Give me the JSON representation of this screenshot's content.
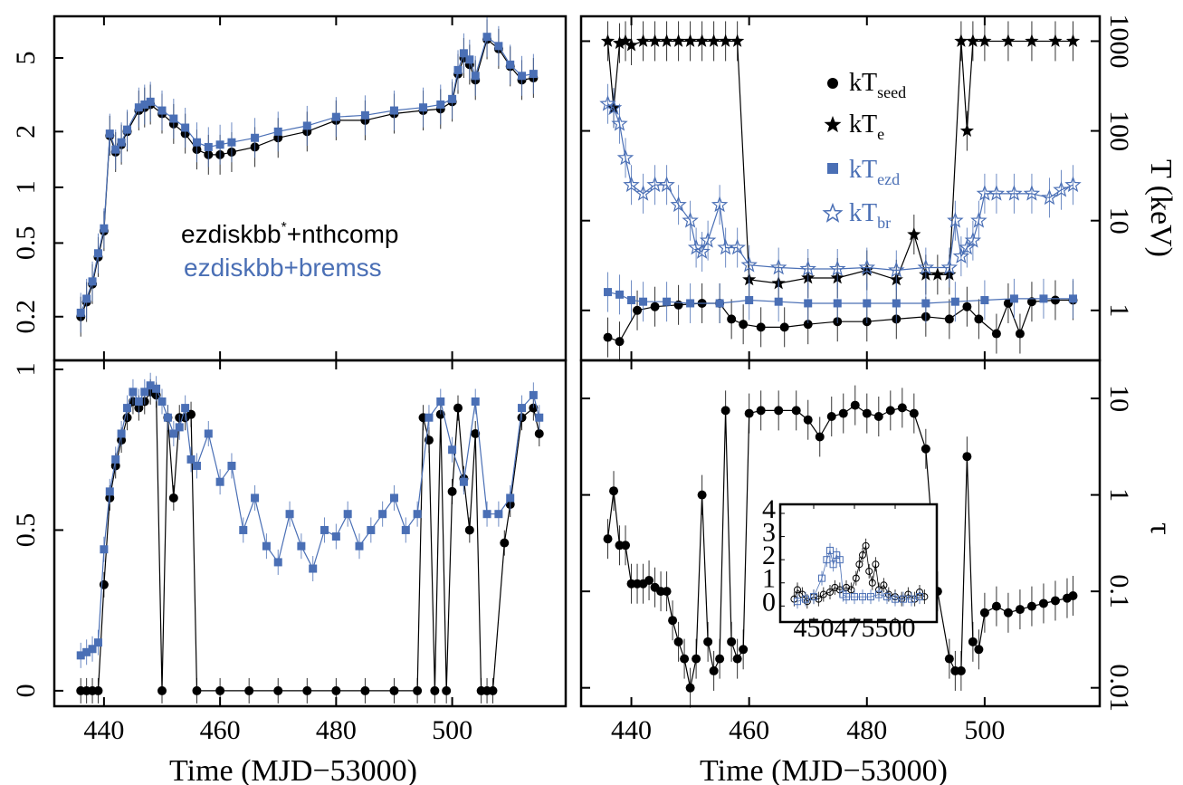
{
  "colors": {
    "black": "#000000",
    "blue": "#4a6fb5"
  },
  "labels": {
    "xlabel": "Time (MJD−53000)",
    "right_top_ylabel": "T (keV)",
    "right_bottom_ylabel": "τ",
    "model1": "ezdiskbb",
    "model1_sup": "*",
    "model1_rest": "+nthcomp",
    "model2": "ezdiskbb+bremss",
    "legend": [
      {
        "base": "kT",
        "sub": "seed",
        "color": "#000000",
        "marker": "filled-circle"
      },
      {
        "base": "kT",
        "sub": "e",
        "color": "#000000",
        "marker": "filled-star"
      },
      {
        "base": "kT",
        "sub": "ezd",
        "color": "#4a6fb5",
        "marker": "filled-square"
      },
      {
        "base": "kT",
        "sub": "br",
        "color": "#4a6fb5",
        "marker": "open-star"
      }
    ]
  },
  "chart_data": [
    {
      "panel": "top-left",
      "type": "scatter",
      "yscale": "log",
      "xlim": [
        433,
        518
      ],
      "ylim": [
        0.13,
        7.5
      ],
      "xticks": [
        "440",
        "460",
        "480",
        "500"
      ],
      "yticks": [
        "0.2",
        "0.5",
        "1",
        "2",
        "5"
      ],
      "series": [
        {
          "name": "ezdiskbb*+nthcomp",
          "color": "#000000",
          "marker": "circle",
          "x": [
            436,
            437,
            438,
            439,
            440,
            441,
            442,
            443,
            444,
            446,
            447,
            448,
            450,
            452,
            454,
            456,
            458,
            460,
            462,
            466,
            470,
            475,
            480,
            485,
            490,
            495,
            498,
            500,
            501,
            502,
            503,
            504,
            506,
            508,
            510,
            512,
            514
          ],
          "y": [
            0.2,
            0.24,
            0.3,
            0.42,
            0.58,
            1.9,
            1.55,
            1.7,
            2.0,
            2.6,
            2.7,
            2.8,
            2.5,
            2.2,
            1.95,
            1.6,
            1.5,
            1.5,
            1.55,
            1.65,
            1.85,
            2.0,
            2.3,
            2.3,
            2.5,
            2.6,
            2.65,
            2.9,
            4.1,
            5.0,
            4.6,
            3.8,
            6.3,
            5.6,
            4.5,
            3.8,
            3.9
          ]
        },
        {
          "name": "ezdiskbb+bremss",
          "color": "#4a6fb5",
          "marker": "square",
          "x": [
            436,
            437,
            438,
            439,
            440,
            441,
            442,
            443,
            444,
            446,
            447,
            448,
            450,
            452,
            454,
            456,
            458,
            460,
            462,
            466,
            470,
            475,
            480,
            485,
            490,
            495,
            498,
            500,
            501,
            502,
            503,
            504,
            506,
            508,
            510,
            512,
            514
          ],
          "y": [
            0.21,
            0.25,
            0.31,
            0.44,
            0.6,
            1.95,
            1.6,
            1.75,
            2.05,
            2.7,
            2.8,
            2.9,
            2.6,
            2.35,
            2.1,
            1.75,
            1.65,
            1.7,
            1.75,
            1.85,
            2.0,
            2.15,
            2.4,
            2.45,
            2.6,
            2.7,
            2.8,
            3.0,
            4.3,
            5.3,
            4.9,
            4.0,
            6.5,
            5.8,
            4.6,
            4.0,
            4.1
          ]
        }
      ]
    },
    {
      "panel": "top-right",
      "type": "scatter",
      "yscale": "log",
      "ylabel": "T (keV)",
      "xlim": [
        433,
        518
      ],
      "ylim": [
        0.35,
        1500
      ],
      "xticks": [
        "440",
        "460",
        "480",
        "500"
      ],
      "yticks": [
        "1",
        "10",
        "100",
        "1000"
      ],
      "series": [
        {
          "name": "kT_seed",
          "color": "#000000",
          "marker": "circle",
          "x": [
            436,
            438,
            441,
            444,
            448,
            452,
            455,
            457,
            459,
            462,
            466,
            470,
            475,
            480,
            485,
            490,
            494,
            497,
            499,
            502,
            504,
            506,
            508,
            512,
            515
          ],
          "y": [
            0.5,
            0.45,
            1.0,
            1.1,
            1.15,
            1.2,
            1.2,
            0.8,
            0.7,
            0.65,
            0.65,
            0.7,
            0.75,
            0.75,
            0.8,
            0.85,
            0.8,
            1.1,
            0.8,
            0.55,
            1.2,
            0.55,
            1.25,
            1.3,
            1.3
          ]
        },
        {
          "name": "kT_e",
          "color": "#000000",
          "marker": "star",
          "x": [
            436,
            437,
            438,
            439,
            440,
            442,
            444,
            446,
            448,
            450,
            452,
            454,
            456,
            458,
            460,
            465,
            470,
            475,
            480,
            485,
            488,
            490,
            492,
            494,
            496,
            497,
            498,
            500,
            504,
            508,
            512,
            515
          ],
          "y": [
            1000,
            180,
            950,
            1000,
            900,
            1000,
            1000,
            1000,
            1000,
            1000,
            1000,
            1000,
            1000,
            1000,
            2.2,
            2.0,
            2.3,
            2.3,
            2.8,
            2.2,
            7.0,
            2.5,
            2.5,
            2.5,
            1000,
            100,
            1000,
            1000,
            1000,
            1000,
            1000,
            1000
          ]
        },
        {
          "name": "kT_ezd",
          "color": "#4a6fb5",
          "marker": "square",
          "x": [
            436,
            438,
            440,
            442,
            446,
            450,
            455,
            460,
            465,
            470,
            475,
            480,
            485,
            490,
            495,
            500,
            505,
            510,
            515
          ],
          "y": [
            1.6,
            1.5,
            1.3,
            1.25,
            1.25,
            1.2,
            1.2,
            1.3,
            1.25,
            1.2,
            1.2,
            1.2,
            1.2,
            1.2,
            1.25,
            1.3,
            1.35,
            1.35,
            1.35
          ]
        },
        {
          "name": "kT_br",
          "color": "#4a6fb5",
          "marker": "open-star",
          "x": [
            436,
            437,
            438,
            439,
            440,
            442,
            444,
            446,
            448,
            450,
            451,
            452,
            453,
            455,
            456,
            458,
            460,
            465,
            470,
            475,
            480,
            485,
            490,
            494,
            495,
            496,
            497,
            498,
            499,
            500,
            502,
            505,
            508,
            511,
            513,
            515
          ],
          "y": [
            200,
            180,
            120,
            50,
            25,
            20,
            25,
            25,
            15,
            10,
            5,
            4.5,
            6,
            15,
            5,
            5,
            3.2,
            3.0,
            2.9,
            2.9,
            3.0,
            2.8,
            3.0,
            3.0,
            10,
            4,
            5,
            6,
            10,
            20,
            20,
            20,
            20,
            18,
            22,
            25
          ]
        }
      ]
    },
    {
      "panel": "bottom-left",
      "type": "scatter",
      "xlabel": "Time (MJD−53000)",
      "xlim": [
        433,
        518
      ],
      "ylim": [
        -0.02,
        1.0
      ],
      "xticks": [
        "440",
        "460",
        "480",
        "500"
      ],
      "yticks": [
        "0",
        "0.5",
        "1"
      ],
      "series": [
        {
          "name": "ezdiskbb*+nthcomp",
          "color": "#000000",
          "marker": "circle",
          "x": [
            436,
            437,
            438,
            439,
            440,
            441,
            442,
            443,
            444,
            445,
            446,
            447,
            448,
            449,
            450,
            451,
            452,
            453,
            454,
            455,
            456,
            460,
            465,
            470,
            475,
            480,
            485,
            490,
            494,
            495,
            496,
            497,
            498,
            499,
            500,
            501,
            502,
            503,
            504,
            505,
            506,
            507,
            509,
            510,
            512,
            514,
            515
          ],
          "y": [
            0,
            0,
            0,
            0,
            0.33,
            0.6,
            0.7,
            0.78,
            0.85,
            0.9,
            0.88,
            0.9,
            0.93,
            0.92,
            0,
            0.85,
            0.6,
            0.85,
            0.85,
            0.86,
            0,
            0,
            0,
            0,
            0,
            0,
            0,
            0,
            0,
            0.85,
            0.78,
            0,
            0.86,
            0,
            0.62,
            0.88,
            0.66,
            0.5,
            0.8,
            0,
            0,
            0,
            0.46,
            0.58,
            0.85,
            0.88,
            0.8
          ]
        },
        {
          "name": "ezdiskbb+bremss",
          "color": "#4a6fb5",
          "marker": "square",
          "x": [
            436,
            437,
            438,
            439,
            440,
            441,
            442,
            443,
            444,
            445,
            446,
            447,
            448,
            449,
            450,
            451,
            452,
            453,
            454,
            455,
            456,
            458,
            460,
            462,
            464,
            466,
            468,
            470,
            472,
            474,
            476,
            478,
            480,
            482,
            484,
            486,
            488,
            490,
            492,
            494,
            496,
            498,
            500,
            502,
            504,
            506,
            508,
            510,
            512,
            514,
            515
          ],
          "y": [
            0.11,
            0.12,
            0.13,
            0.15,
            0.44,
            0.62,
            0.72,
            0.8,
            0.88,
            0.93,
            0.9,
            0.93,
            0.95,
            0.94,
            0.9,
            0.85,
            0.8,
            0.82,
            0.88,
            0.72,
            0.7,
            0.8,
            0.65,
            0.7,
            0.5,
            0.6,
            0.45,
            0.4,
            0.55,
            0.45,
            0.38,
            0.5,
            0.48,
            0.55,
            0.45,
            0.5,
            0.55,
            0.6,
            0.5,
            0.55,
            0.85,
            0.9,
            0.75,
            0.65,
            0.9,
            0.55,
            0.55,
            0.6,
            0.88,
            0.92,
            0.85
          ]
        }
      ]
    },
    {
      "panel": "bottom-right",
      "type": "scatter",
      "yscale": "log",
      "xlabel": "Time (MJD−53000)",
      "ylabel": "τ",
      "xlim": [
        433,
        518
      ],
      "ylim": [
        0.008,
        20
      ],
      "xticks": [
        "440",
        "460",
        "480",
        "500"
      ],
      "yticks": [
        "0.01",
        "0.1",
        "1",
        "10"
      ],
      "series": [
        {
          "name": "tau",
          "color": "#000000",
          "marker": "circle",
          "x": [
            436,
            437,
            438,
            439,
            440,
            441,
            442,
            443,
            444,
            445,
            446,
            447,
            448,
            449,
            450,
            451,
            452,
            453,
            454,
            455,
            456,
            457,
            458,
            459,
            460,
            462,
            465,
            468,
            470,
            472,
            474,
            476,
            478,
            480,
            482,
            484,
            486,
            488,
            490,
            491,
            492,
            494,
            495,
            496,
            497,
            498,
            499,
            500,
            502,
            504,
            506,
            508,
            510,
            512,
            514,
            515
          ],
          "y": [
            0.35,
            1.1,
            0.3,
            0.3,
            0.12,
            0.12,
            0.12,
            0.13,
            0.11,
            0.1,
            0.1,
            0.05,
            0.03,
            0.02,
            0.01,
            0.02,
            1.0,
            0.03,
            0.015,
            0.02,
            7.5,
            0.03,
            0.02,
            0.025,
            7.0,
            7.5,
            7.5,
            7.5,
            6.0,
            4.0,
            6.5,
            7.0,
            8.5,
            7.0,
            6.5,
            7.5,
            8.0,
            7.0,
            3.0,
            0.5,
            0.1,
            0.02,
            0.015,
            0.015,
            2.5,
            0.03,
            0.025,
            0.06,
            0.07,
            0.06,
            0.065,
            0.07,
            0.075,
            0.08,
            0.085,
            0.09
          ]
        }
      ]
    },
    {
      "panel": "inset",
      "type": "scatter",
      "xlim": [
        435,
        520
      ],
      "ylim": [
        -0.3,
        4
      ],
      "xticks": [
        "450",
        "475",
        "500"
      ],
      "yticks": [
        "0",
        "1",
        "2",
        "3",
        "4"
      ],
      "series": [
        {
          "name": "black",
          "color": "#000000",
          "marker": "open-circle",
          "x": [
            438,
            440,
            443,
            446,
            450,
            453,
            456,
            460,
            463,
            466,
            470,
            473,
            476,
            478,
            480,
            482,
            484,
            486,
            488,
            490,
            493,
            496,
            500,
            504,
            508,
            512,
            515,
            518
          ],
          "y": [
            0.3,
            0.7,
            0.5,
            0.2,
            0.4,
            0.3,
            0.5,
            0.6,
            0.8,
            0.7,
            0.8,
            0.7,
            1.2,
            1.8,
            2.2,
            2.6,
            1.5,
            1.0,
            1.8,
            0.7,
            0.9,
            0.5,
            0.4,
            0.3,
            0.5,
            0.3,
            0.6,
            0.4
          ]
        },
        {
          "name": "blue",
          "color": "#4a6fb5",
          "marker": "open-square",
          "x": [
            440,
            445,
            450,
            455,
            458,
            460,
            462,
            464,
            466,
            468,
            470,
            475,
            480,
            485,
            490,
            495,
            500,
            505,
            510,
            515
          ],
          "y": [
            0.2,
            0.3,
            0.4,
            1.2,
            2.0,
            2.4,
            1.8,
            2.2,
            2.0,
            0.5,
            0.4,
            0.4,
            0.4,
            0.4,
            0.5,
            0.4,
            0.3,
            0.3,
            0.3,
            0.4
          ]
        }
      ]
    }
  ]
}
